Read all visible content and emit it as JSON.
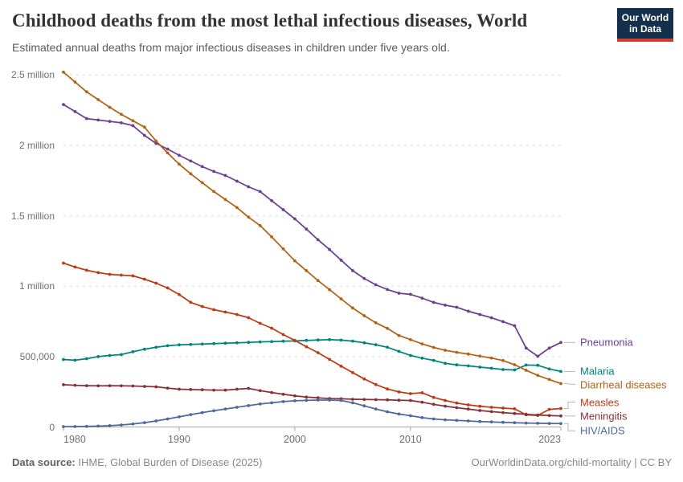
{
  "header": {
    "title": "Childhood deaths from the most lethal infectious diseases, World",
    "subtitle": "Estimated annual deaths from major infectious diseases in children under five years old."
  },
  "logo": {
    "line1": "Our World",
    "line2": "in Data",
    "bg_color": "#14304D",
    "accent_color": "#D73A31"
  },
  "footer": {
    "source_label": "Data source:",
    "source_value": " IHME, Global Burden of Disease (2025)",
    "right_link": "OurWorldinData.org/child-mortality",
    "right_license": " | CC BY"
  },
  "chart_data": {
    "type": "line",
    "title": "Childhood deaths from the most lethal infectious diseases, World",
    "subtitle": "Estimated annual deaths from major infectious diseases in children under five years old.",
    "entity": "World",
    "unit": "deaths per year (values stored in thousands)",
    "grid": "dashed horizontal gridlines",
    "legend_position": "right of line ends",
    "x": [
      1980,
      1981,
      1982,
      1983,
      1984,
      1985,
      1986,
      1987,
      1988,
      1989,
      1990,
      1991,
      1992,
      1993,
      1994,
      1995,
      1996,
      1997,
      1998,
      1999,
      2000,
      2001,
      2002,
      2003,
      2004,
      2005,
      2006,
      2007,
      2008,
      2009,
      2010,
      2011,
      2012,
      2013,
      2014,
      2015,
      2016,
      2017,
      2018,
      2019,
      2020,
      2021,
      2022,
      2023
    ],
    "x_axis": {
      "ticks": [
        {
          "year": 1980,
          "label": "1980",
          "align": "left"
        },
        {
          "year": 1990,
          "label": "1990",
          "align": "center"
        },
        {
          "year": 2000,
          "label": "2000",
          "align": "center"
        },
        {
          "year": 2010,
          "label": "2010",
          "align": "center"
        },
        {
          "year": 2023,
          "label": "2023",
          "align": "right"
        }
      ]
    },
    "y_axis": {
      "range_thousands": [
        0,
        2500
      ],
      "ticks": [
        {
          "value_thousands": 0,
          "label": "0"
        },
        {
          "value_thousands": 500,
          "label": "500,000"
        },
        {
          "value_thousands": 1000,
          "label": "1 million"
        },
        {
          "value_thousands": 1500,
          "label": "1.5 million"
        },
        {
          "value_thousands": 2000,
          "label": "2 million"
        },
        {
          "value_thousands": 2500,
          "label": "2.5 million"
        }
      ]
    },
    "series": [
      {
        "id": "pneumonia",
        "label": "Pneumonia",
        "color": "#6D3E91",
        "values_thousands": [
          2290,
          2240,
          2190,
          2180,
          2170,
          2160,
          2140,
          2071,
          2014,
          1974,
          1929,
          1889,
          1849,
          1815,
          1786,
          1746,
          1706,
          1672,
          1607,
          1543,
          1478,
          1405,
          1330,
          1260,
          1185,
          1110,
          1055,
          1010,
          976,
          950,
          942,
          915,
          885,
          865,
          850,
          822,
          799,
          776,
          748,
          719,
          560,
          502,
          560,
          600
        ]
      },
      {
        "id": "malaria",
        "label": "Malaria",
        "color": "#00847E",
        "values_thousands": [
          479,
          474,
          485,
          500,
          508,
          514,
          534,
          552,
          566,
          577,
          583,
          586,
          589,
          592,
          595,
          598,
          601,
          604,
          606,
          609,
          611,
          615,
          618,
          620,
          617,
          610,
          598,
          584,
          566,
          537,
          508,
          489,
          473,
          452,
          441,
          434,
          425,
          417,
          408,
          405,
          440,
          438,
          412,
          394
        ]
      },
      {
        "id": "diarrheal",
        "label": "Diarrheal diseases",
        "color": "#B16214",
        "values_thousands": [
          2520,
          2450,
          2380,
          2325,
          2270,
          2220,
          2175,
          2130,
          2031,
          1946,
          1866,
          1798,
          1735,
          1672,
          1615,
          1558,
          1490,
          1430,
          1350,
          1265,
          1180,
          1110,
          1040,
          975,
          910,
          845,
          790,
          740,
          700,
          650,
          620,
          590,
          565,
          545,
          530,
          518,
          503,
          490,
          472,
          442,
          403,
          366,
          337,
          308
        ]
      },
      {
        "id": "measles",
        "label": "Measles",
        "color": "#BE3B12",
        "values_thousands": [
          1164,
          1136,
          1113,
          1096,
          1084,
          1078,
          1073,
          1050,
          1021,
          987,
          941,
          885,
          856,
          833,
          816,
          799,
          776,
          736,
          702,
          656,
          615,
          570,
          528,
          480,
          432,
          386,
          341,
          301,
          270,
          249,
          237,
          243,
          210,
          188,
          170,
          157,
          147,
          140,
          134,
          129,
          86,
          82,
          125,
          131
        ]
      },
      {
        "id": "meningitis",
        "label": "Meningitis",
        "color": "#883039",
        "values_thousands": [
          300,
          296,
          293,
          292,
          293,
          292,
          291,
          288,
          285,
          276,
          268,
          266,
          264,
          262,
          262,
          268,
          274,
          258,
          245,
          232,
          221,
          212,
          207,
          202,
          200,
          197,
          195,
          194,
          193,
          190,
          188,
          176,
          161,
          148,
          137,
          127,
          117,
          109,
          102,
          96,
          90,
          85,
          81,
          78
        ]
      },
      {
        "id": "hiv",
        "label": "HIV/AIDS",
        "color": "#4C6A9C",
        "values_thousands": [
          2,
          3,
          4,
          6,
          9,
          14,
          21,
          31,
          43,
          57,
          72,
          88,
          102,
          115,
          128,
          140,
          152,
          163,
          172,
          180,
          186,
          189,
          191,
          191,
          188,
          172,
          150,
          128,
          108,
          92,
          80,
          66,
          57,
          51,
          47,
          43,
          39,
          36,
          33,
          30,
          28,
          26,
          25,
          24
        ]
      }
    ]
  }
}
